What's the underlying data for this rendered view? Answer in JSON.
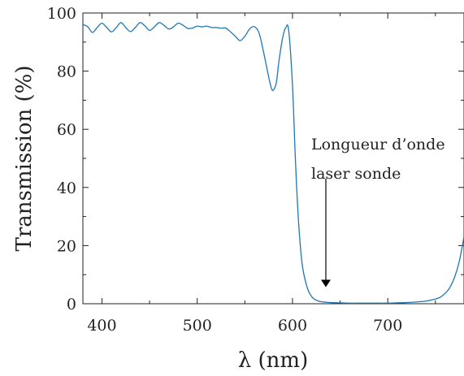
{
  "chart_data": {
    "type": "line",
    "title": "",
    "xlabel": "λ (nm)",
    "ylabel": "Transmission (%)",
    "xlim": [
      380,
      780
    ],
    "ylim": [
      0,
      100
    ],
    "xticks": [
      "400",
      "500",
      "600",
      "700"
    ],
    "yticks": [
      "0",
      "20",
      "40",
      "60",
      "80",
      "100"
    ],
    "grid": false,
    "line_color": "#1f77b4",
    "series": [
      {
        "x": [
          380,
          385,
          390,
          395,
          400,
          405,
          410,
          415,
          420,
          425,
          430,
          435,
          440,
          445,
          450,
          455,
          460,
          465,
          470,
          475,
          480,
          485,
          490,
          495,
          500,
          505,
          510,
          515,
          520,
          525,
          530,
          535,
          540,
          545,
          550,
          555,
          560,
          565,
          570,
          575,
          578,
          580,
          583,
          586,
          590,
          593,
          596,
          600,
          603,
          606,
          610,
          615,
          620,
          625,
          630,
          640,
          650,
          660,
          670,
          680,
          690,
          700,
          710,
          720,
          730,
          740,
          750,
          755,
          760,
          765,
          770,
          775,
          780
        ],
        "y": [
          96,
          95.3,
          93.3,
          95,
          96.5,
          95,
          93.5,
          95,
          96.7,
          95,
          93.6,
          95,
          96.7,
          95.6,
          94,
          95.2,
          96.7,
          95.8,
          94.5,
          95.2,
          96.5,
          95.8,
          94.7,
          94.8,
          95.5,
          95.2,
          95.5,
          95,
          95,
          94.8,
          94.8,
          93.5,
          92,
          90.5,
          92,
          94.5,
          95.3,
          93,
          86,
          78,
          74,
          73.5,
          76,
          84,
          92,
          95,
          94,
          75,
          50,
          30,
          14,
          6,
          2.5,
          1.2,
          0.7,
          0.4,
          0.3,
          0.2,
          0.2,
          0.2,
          0.2,
          0.2,
          0.3,
          0.4,
          0.6,
          0.9,
          1.6,
          2.2,
          3.5,
          5.5,
          9,
          14.5,
          23
        ]
      }
    ],
    "annotations": [
      {
        "text_line1": "Longueur d’onde",
        "text_line2": "laser sonde",
        "arrow_x": 635,
        "arrow_y_start": 43,
        "arrow_y_end": 6
      }
    ]
  }
}
